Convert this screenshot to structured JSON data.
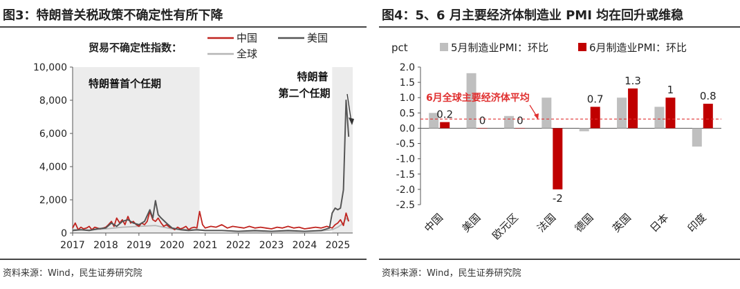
{
  "left": {
    "title": "图3：特朗普关税政策不确定性有所下降",
    "source": "资料来源：Wind，民生证券研究院",
    "annotations": {
      "first_term": "特朗普首个任期",
      "second_term_line1": "特朗普",
      "second_term_line2": "第二个任期"
    }
  },
  "right": {
    "title": "图4：5、6 月主要经济体制造业 PMI 均在回升或维稳",
    "source": "资料来源：Wind，民生证券研究院",
    "annotations": {
      "avg_label": "6月全球主要经济体平均"
    }
  },
  "colors": {
    "china": "#c0231e",
    "us": "#555555",
    "global": "#b5b5b5",
    "shade": "#ececec",
    "may": "#bfbfbf",
    "june": "#c00000",
    "avg_line": "#e03030"
  },
  "chart_data": [
    {
      "type": "line",
      "title": "贸易不确定性指数：",
      "xlabel": "",
      "ylabel": "",
      "xlim": [
        2017,
        2025.45
      ],
      "ylim": [
        0,
        10000
      ],
      "yticks": [
        "0",
        "2,000",
        "4,000",
        "6,000",
        "8,000",
        "10,000"
      ],
      "xticks": [
        "2017",
        "2018",
        "2019",
        "2020",
        "2021",
        "2022",
        "2023",
        "2024",
        "2025"
      ],
      "legend": "top-right",
      "shaded_periods": [
        [
          2017,
          2020.83
        ],
        [
          2024.83,
          2025.45
        ]
      ],
      "series": [
        {
          "name": "中国",
          "x": [
            2017.0,
            2017.08,
            2017.17,
            2017.25,
            2017.33,
            2017.42,
            2017.5,
            2017.58,
            2017.67,
            2017.75,
            2017.83,
            2017.92,
            2018.0,
            2018.08,
            2018.17,
            2018.25,
            2018.33,
            2018.42,
            2018.5,
            2018.58,
            2018.67,
            2018.75,
            2018.83,
            2018.92,
            2019.0,
            2019.08,
            2019.17,
            2019.25,
            2019.33,
            2019.42,
            2019.5,
            2019.58,
            2019.67,
            2019.75,
            2019.83,
            2019.92,
            2020.0,
            2020.08,
            2020.17,
            2020.25,
            2020.33,
            2020.42,
            2020.5,
            2020.58,
            2020.67,
            2020.75,
            2020.83,
            2020.92,
            2021.0,
            2021.17,
            2021.33,
            2021.5,
            2021.67,
            2021.83,
            2022.0,
            2022.17,
            2022.33,
            2022.5,
            2022.67,
            2022.83,
            2023.0,
            2023.17,
            2023.33,
            2023.5,
            2023.67,
            2023.83,
            2024.0,
            2024.17,
            2024.33,
            2024.5,
            2024.67,
            2024.83,
            2024.92,
            2025.0,
            2025.08,
            2025.17,
            2025.25,
            2025.33
          ],
          "y": [
            300,
            600,
            200,
            350,
            250,
            300,
            400,
            200,
            350,
            300,
            250,
            300,
            350,
            500,
            700,
            400,
            900,
            600,
            800,
            500,
            1000,
            600,
            700,
            500,
            400,
            600,
            500,
            700,
            1300,
            800,
            700,
            900,
            600,
            400,
            500,
            350,
            300,
            200,
            350,
            250,
            300,
            400,
            200,
            300,
            350,
            300,
            1300,
            500,
            300,
            400,
            350,
            500,
            300,
            400,
            350,
            300,
            400,
            300,
            350,
            300,
            250,
            350,
            300,
            400,
            300,
            350,
            250,
            300,
            350,
            300,
            400,
            300,
            500,
            600,
            800,
            450,
            1200,
            700
          ]
        },
        {
          "name": "美国",
          "x": [
            2017.0,
            2017.25,
            2017.5,
            2017.75,
            2018.0,
            2018.17,
            2018.33,
            2018.5,
            2018.67,
            2018.83,
            2019.0,
            2019.17,
            2019.33,
            2019.42,
            2019.5,
            2019.58,
            2019.67,
            2019.83,
            2020.0,
            2020.25,
            2020.5,
            2020.75,
            2021.0,
            2021.5,
            2022.0,
            2022.5,
            2023.0,
            2023.5,
            2024.0,
            2024.5,
            2024.75,
            2024.83,
            2024.92,
            2025.0,
            2025.08,
            2025.17,
            2025.25,
            2025.33
          ],
          "y": [
            150,
            200,
            150,
            250,
            300,
            600,
            400,
            700,
            800,
            600,
            500,
            700,
            1400,
            900,
            1950,
            1100,
            900,
            600,
            300,
            200,
            150,
            200,
            150,
            150,
            100,
            150,
            100,
            150,
            100,
            150,
            300,
            1200,
            1500,
            1400,
            1500,
            2600,
            8000,
            5800
          ]
        },
        {
          "name": "全球",
          "x": [
            2017.0,
            2017.5,
            2018.0,
            2018.5,
            2019.0,
            2019.5,
            2020.0,
            2020.5,
            2021.0,
            2021.5,
            2022.0,
            2022.5,
            2023.0,
            2023.5,
            2024.0,
            2024.5,
            2024.83,
            2025.0,
            2025.17,
            2025.25,
            2025.33
          ],
          "y": [
            200,
            180,
            250,
            350,
            400,
            450,
            250,
            200,
            150,
            150,
            100,
            100,
            100,
            100,
            100,
            120,
            200,
            350,
            600,
            900,
            700
          ]
        }
      ]
    },
    {
      "type": "bar",
      "title": "",
      "xlabel": "",
      "ylabel": "pct",
      "ylim": [
        -2.5,
        2.0
      ],
      "yticks": [
        "2.0",
        "1.5",
        "1.0",
        "0.5",
        "0.0",
        "-0.5",
        "-1.0",
        "-1.5",
        "-2.0",
        "-2.5"
      ],
      "legend": "top",
      "categories": [
        "中国",
        "美国",
        "欧元区",
        "法国",
        "德国",
        "英国",
        "日本",
        "印度"
      ],
      "series": [
        {
          "name": "5月制造业PMI：环比",
          "values": [
            0.5,
            1.8,
            0.4,
            1.0,
            -0.1,
            1.0,
            0.7,
            -0.6
          ]
        },
        {
          "name": "6月制造业PMI：环比",
          "values": [
            0.2,
            0,
            0,
            -2,
            0.7,
            1.3,
            1,
            0.8
          ]
        }
      ],
      "data_labels": [
        "0.2",
        "0",
        "0",
        "-2",
        "0.7",
        "1.3",
        "1",
        "0.8"
      ],
      "average_line": 0.3
    }
  ]
}
